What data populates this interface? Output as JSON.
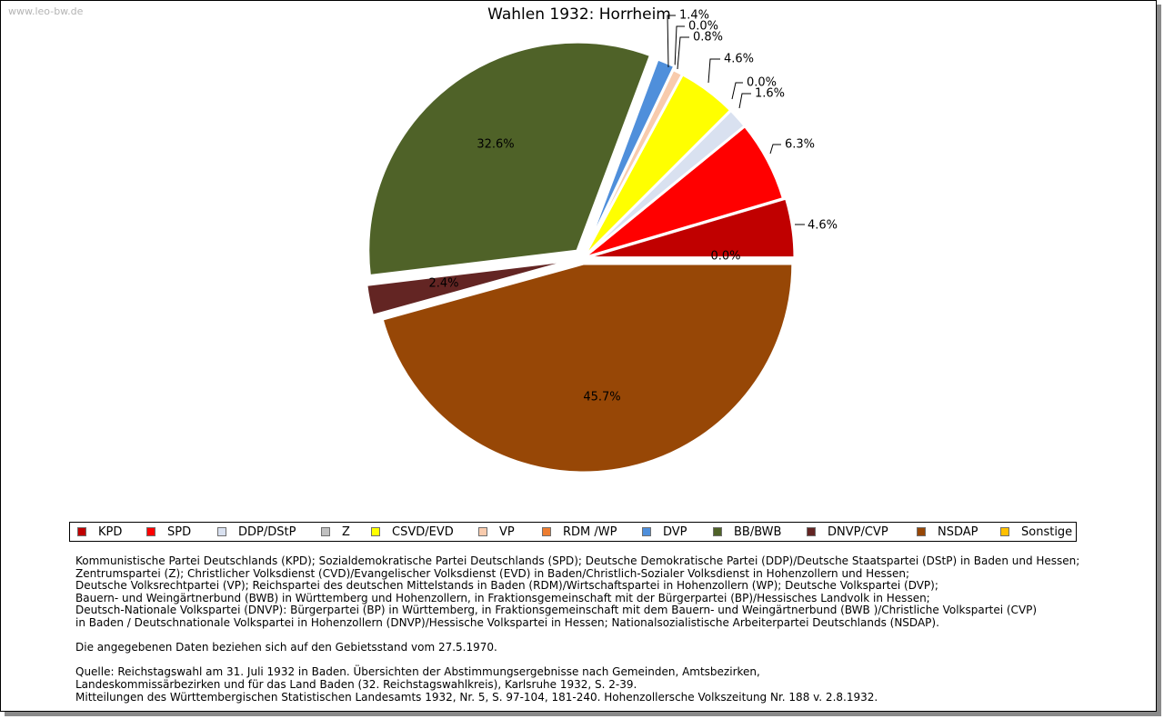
{
  "watermark": "www.leo-bw.de",
  "chart_data": {
    "type": "pie",
    "title": "Wahlen 1932: Horrheim",
    "slices": [
      {
        "name": "KPD",
        "value": 4.6,
        "label": "4.6%",
        "color": "#c00000"
      },
      {
        "name": "SPD",
        "value": 6.3,
        "label": "6.3%",
        "color": "#ff0000"
      },
      {
        "name": "DDP/DStP",
        "value": 1.6,
        "label": "1.6%",
        "color": "#d9e1f0"
      },
      {
        "name": "Z",
        "value": 0.0,
        "label": "0.0%",
        "color": "#c0c0c0"
      },
      {
        "name": "CSVD/EVD",
        "value": 4.6,
        "label": "4.6%",
        "color": "#ffff00"
      },
      {
        "name": "VP",
        "value": 0.8,
        "label": "0.8%",
        "color": "#f8cbad"
      },
      {
        "name": "RDM /WP",
        "value": 0.0,
        "label": "0.0%",
        "color": "#ed7d31"
      },
      {
        "name": "DVP",
        "value": 1.4,
        "label": "1.4%",
        "color": "#4f8fdb"
      },
      {
        "name": "BB/BWB",
        "value": 32.6,
        "label": "32.6%",
        "color": "#4f6228"
      },
      {
        "name": "DNVP/CVP",
        "value": 2.4,
        "label": "2.4%",
        "color": "#632523"
      },
      {
        "name": "NSDAP",
        "value": 45.7,
        "label": "45.7%",
        "color": "#974706"
      },
      {
        "name": "Sonstige",
        "value": 0.0,
        "label": "0.0%",
        "color": "#ffc000"
      }
    ]
  },
  "notes": {
    "parties": [
      "Kommunistische Partei Deutschlands (KPD); Sozialdemokratische Partei Deutschlands (SPD); Deutsche Demokratische Partei (DDP)/Deutsche Staatspartei (DStP) in Baden und Hessen;",
      "Zentrumspartei (Z); Christlicher Volksdienst (CVD)/Evangelischer Volksdienst (EVD) in Baden/Christlich-Sozialer Volksdienst in Hohenzollern und Hessen;",
      "Deutsche Volksrechtpartei (VP); Reichspartei des deutschen Mittelstands in Baden (RDM)/Wirtschaftspartei in Hohenzollern (WP); Deutsche Volkspartei (DVP);",
      "Bauern- und Weingärtnerbund (BWB) in Württemberg und Hohenzollern, in Fraktionsgemeinschaft mit der Bürgerpartei (BP)/Hessisches Landvolk in Hessen;",
      "Deutsch-Nationale Volkspartei (DNVP): Bürgerpartei (BP) in Württemberg, in Fraktionsgemeinschaft mit dem Bauern- und Weingärtnerbund (BWB )/Christliche Volkspartei (CVP)",
      "in Baden / Deutschnationale Volkspartei in Hohenzollern (DNVP)/Hessische Volkspartei in Hessen; Nationalsozialistische Arbeiterpartei Deutschlands (NSDAP)."
    ],
    "territory": "Die angegebenen Daten beziehen sich auf den Gebietsstand vom 27.5.1970.",
    "source": [
      "Quelle: Reichstagswahl am 31. Juli 1932 in Baden. Übersichten der Abstimmungsergebnisse nach Gemeinden, Amtsbezirken,",
      "Landeskommissärbezirken und für das Land Baden (32. Reichstagswahlkreis), Karlsruhe 1932, S. 2-39.",
      "Mitteilungen des Württembergischen Statistischen Landesamts 1932, Nr. 5, S. 97-104, 181-240. Hohenzollersche Volkszeitung Nr. 188 v. 2.8.1932."
    ]
  }
}
